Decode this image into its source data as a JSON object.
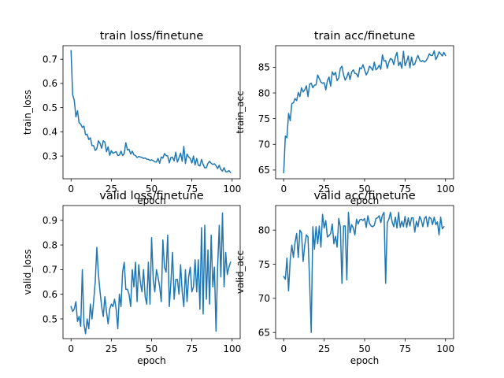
{
  "colors": {
    "series": "#1f77b4",
    "axes": "#000000",
    "background": "#ffffff"
  },
  "chart_data": [
    {
      "type": "line",
      "title": "train loss/finetune",
      "xlabel": "epoch",
      "ylabel": "train_loss",
      "xlim": [
        -5,
        105
      ],
      "ylim": [
        0.206,
        0.756
      ],
      "xticks": [
        0,
        25,
        50,
        75,
        100
      ],
      "yticks": [
        0.3,
        0.4,
        0.5,
        0.6,
        0.7
      ],
      "x_start": 0,
      "grid": false,
      "legend": "none",
      "series": [
        {
          "values": [
            0.735,
            0.553,
            0.53,
            0.462,
            0.487,
            0.437,
            0.432,
            0.418,
            0.424,
            0.388,
            0.39,
            0.368,
            0.375,
            0.343,
            0.343,
            0.323,
            0.33,
            0.363,
            0.352,
            0.332,
            0.363,
            0.357,
            0.318,
            0.338,
            0.303,
            0.322,
            0.311,
            0.315,
            0.318,
            0.302,
            0.304,
            0.32,
            0.302,
            0.31,
            0.355,
            0.325,
            0.328,
            0.308,
            0.32,
            0.305,
            0.302,
            0.294,
            0.298,
            0.296,
            0.294,
            0.29,
            0.292,
            0.287,
            0.286,
            0.282,
            0.284,
            0.281,
            0.276,
            0.275,
            0.29,
            0.27,
            0.296,
            0.291,
            0.31,
            0.302,
            0.3,
            0.272,
            0.294,
            0.295,
            0.28,
            0.316,
            0.275,
            0.292,
            0.312,
            0.278,
            0.34,
            0.269,
            0.308,
            0.296,
            0.29,
            0.271,
            0.3,
            0.263,
            0.29,
            0.262,
            0.259,
            0.286,
            0.265,
            0.251,
            0.252,
            0.27,
            0.278,
            0.27,
            0.265,
            0.268,
            0.26,
            0.248,
            0.262,
            0.244,
            0.238,
            0.252,
            0.235,
            0.235,
            0.24,
            0.232
          ]
        }
      ]
    },
    {
      "type": "line",
      "title": "train acc/finetune",
      "xlabel": "epoch",
      "ylabel": "train_acc",
      "xlim": [
        -5,
        105
      ],
      "ylim": [
        63.3,
        89.2
      ],
      "xticks": [
        0,
        25,
        50,
        75,
        100
      ],
      "yticks": [
        65,
        70,
        75,
        80,
        85
      ],
      "x_start": 0,
      "grid": false,
      "legend": "none",
      "series": [
        {
          "values": [
            64.5,
            71.6,
            71.3,
            76.0,
            74.6,
            77.9,
            78.1,
            78.9,
            78.5,
            80.1,
            79.3,
            81.0,
            80.2,
            80.6,
            81.4,
            79.3,
            81.7,
            81.9,
            81.0,
            81.5,
            81.6,
            83.5,
            82.8,
            82.1,
            81.9,
            82.0,
            80.6,
            82.4,
            83.1,
            81.3,
            84.1,
            83.5,
            84.0,
            82.4,
            82.9,
            84.8,
            85.2,
            83.5,
            82.5,
            83.1,
            84.0,
            82.6,
            84.1,
            84.5,
            83.8,
            83.7,
            83.1,
            84.9,
            84.7,
            85.5,
            84.5,
            83.5,
            84.1,
            85.2,
            84.9,
            84.4,
            86.0,
            84.5,
            84.8,
            85.4,
            84.6,
            87.4,
            86.2,
            86.3,
            84.8,
            86.0,
            86.7,
            86.5,
            85.5,
            87.0,
            87.9,
            85.3,
            86.0,
            84.8,
            88.1,
            85.3,
            86.1,
            87.2,
            84.9,
            87.0,
            85.4,
            85.6,
            86.6,
            87.3,
            86.4,
            86.1,
            86.3,
            86.0,
            86.3,
            86.8,
            87.6,
            87.3,
            87.3,
            88.2,
            86.5,
            87.1,
            88.0,
            87.6,
            87.2,
            87.9,
            87.3
          ]
        }
      ]
    },
    {
      "type": "line",
      "title": "valid loss/finetune",
      "xlabel": "epoch",
      "ylabel": "valid_loss",
      "xlim": [
        -5,
        105
      ],
      "ylim": [
        0.42,
        0.96
      ],
      "xticks": [
        0,
        25,
        50,
        75,
        100
      ],
      "yticks": [
        0.5,
        0.6,
        0.7,
        0.8,
        0.9
      ],
      "x_start": 0,
      "grid": false,
      "legend": "none",
      "series": [
        {
          "values": [
            0.55,
            0.53,
            0.54,
            0.57,
            0.49,
            0.51,
            0.47,
            0.7,
            0.48,
            0.44,
            0.5,
            0.46,
            0.56,
            0.5,
            0.57,
            0.65,
            0.79,
            0.68,
            0.61,
            0.55,
            0.51,
            0.59,
            0.53,
            0.48,
            0.54,
            0.56,
            0.55,
            0.58,
            0.54,
            0.46,
            0.6,
            0.55,
            0.69,
            0.73,
            0.62,
            0.62,
            0.6,
            0.55,
            0.7,
            0.63,
            0.73,
            0.57,
            0.72,
            0.65,
            0.61,
            0.7,
            0.59,
            0.56,
            0.73,
            0.56,
            0.83,
            0.66,
            0.61,
            0.7,
            0.67,
            0.63,
            0.57,
            0.82,
            0.71,
            0.69,
            0.84,
            0.55,
            0.65,
            0.77,
            0.58,
            0.66,
            0.66,
            0.6,
            0.72,
            0.61,
            0.55,
            0.7,
            0.57,
            0.67,
            0.71,
            0.61,
            0.63,
            0.74,
            0.61,
            0.74,
            0.54,
            0.87,
            0.52,
            0.88,
            0.58,
            0.78,
            0.56,
            0.84,
            0.63,
            0.71,
            0.45,
            0.71,
            0.88,
            0.67,
            0.93,
            0.63,
            0.77,
            0.68,
            0.71,
            0.73
          ]
        }
      ]
    },
    {
      "type": "line",
      "title": "valid acc/finetune",
      "xlabel": "epoch",
      "ylabel": "valid_acc",
      "xlim": [
        -5,
        105
      ],
      "ylim": [
        64.1,
        83.6
      ],
      "xticks": [
        0,
        25,
        50,
        75,
        100
      ],
      "yticks": [
        65,
        70,
        75,
        80
      ],
      "x_start": 0,
      "grid": false,
      "legend": "none",
      "series": [
        {
          "values": [
            73.2,
            72.8,
            75.9,
            71.1,
            75.6,
            77.8,
            76.0,
            78.2,
            79.5,
            76.0,
            80.0,
            79.6,
            75.4,
            77.8,
            79.3,
            79.0,
            72.5,
            65.0,
            80.5,
            77.2,
            80.5,
            78.0,
            80.6,
            77.5,
            82.3,
            80.3,
            81.4,
            79.0,
            79.2,
            79.5,
            80.9,
            78.0,
            79.1,
            77.5,
            81.7,
            80.5,
            72.2,
            80.6,
            80.6,
            72.7,
            82.6,
            79.6,
            80.8,
            80.3,
            79.3,
            81.6,
            80.9,
            81.5,
            81.6,
            81.4,
            81.7,
            80.4,
            82.1,
            81.0,
            80.6,
            80.5,
            80.7,
            81.7,
            81.8,
            82.1,
            81.1,
            82.2,
            82.6,
            72.2,
            81.1,
            81.6,
            82.6,
            81.2,
            80.5,
            81.9,
            80.3,
            82.6,
            80.4,
            81.3,
            80.5,
            82.0,
            80.4,
            81.8,
            80.6,
            81.8,
            81.8,
            79.7,
            81.3,
            80.5,
            82.0,
            81.5,
            80.5,
            81.7,
            82.0,
            80.5,
            81.9,
            81.7,
            80.8,
            81.9,
            80.8,
            81.2,
            79.3,
            81.9,
            80.2,
            80.5
          ]
        }
      ]
    }
  ]
}
